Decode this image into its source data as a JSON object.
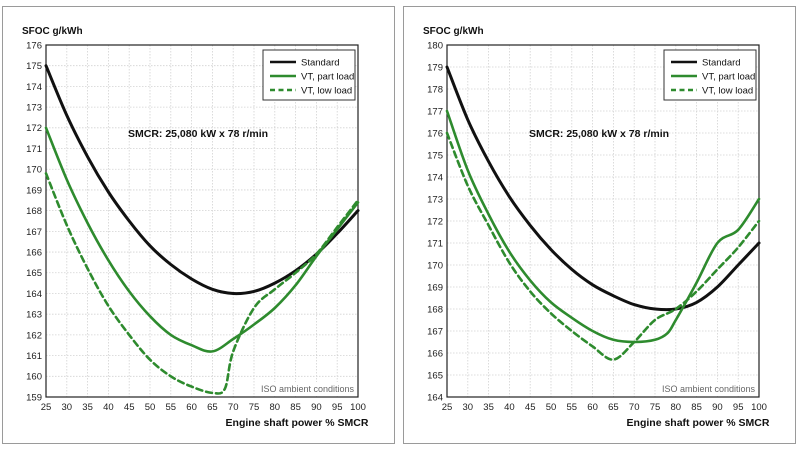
{
  "chart_data": [
    {
      "type": "line",
      "ylabel": "SFOC g/kWh",
      "xlabel": "Engine shaft power % SMCR",
      "annotation": "SMCR: 25,080 kW x 78 r/min",
      "note": "ISO ambient conditions",
      "xlim": [
        25,
        100
      ],
      "ylim": [
        159,
        176
      ],
      "xticks": [
        25,
        30,
        35,
        40,
        45,
        50,
        55,
        60,
        65,
        70,
        75,
        80,
        85,
        90,
        95,
        100
      ],
      "yticks": [
        159,
        160,
        161,
        162,
        163,
        164,
        165,
        166,
        167,
        168,
        169,
        170,
        171,
        172,
        173,
        174,
        175,
        176
      ],
      "grid": true,
      "legend": "top-right",
      "series": [
        {
          "name": "Standard",
          "color": "#111111",
          "style": "solid",
          "x": [
            25,
            30,
            35,
            40,
            45,
            50,
            55,
            60,
            65,
            70,
            75,
            80,
            85,
            90,
            95,
            100
          ],
          "y": [
            175.0,
            172.6,
            170.6,
            168.9,
            167.5,
            166.3,
            165.4,
            164.7,
            164.2,
            164.0,
            164.1,
            164.5,
            165.1,
            165.9,
            166.9,
            168.0
          ]
        },
        {
          "name": "VT, part load",
          "color": "#2e8b2e",
          "style": "solid",
          "x": [
            25,
            30,
            35,
            40,
            45,
            50,
            55,
            60,
            65,
            70,
            75,
            80,
            85,
            90,
            95,
            100
          ],
          "y": [
            172.0,
            169.5,
            167.4,
            165.6,
            164.1,
            162.9,
            162.0,
            161.5,
            161.2,
            161.8,
            162.5,
            163.3,
            164.4,
            165.8,
            167.1,
            168.4
          ]
        },
        {
          "name": "VT, low load",
          "color": "#2e8b2e",
          "style": "dashed",
          "x": [
            25,
            30,
            35,
            40,
            45,
            50,
            55,
            60,
            65,
            68,
            70,
            75,
            80,
            85,
            90,
            95,
            100
          ],
          "y": [
            169.8,
            167.3,
            165.2,
            163.4,
            162.0,
            160.8,
            160.0,
            159.5,
            159.2,
            159.4,
            161.2,
            163.3,
            164.2,
            165.0,
            165.9,
            167.2,
            168.5
          ]
        }
      ]
    },
    {
      "type": "line",
      "ylabel": "SFOC g/kWh",
      "xlabel": "Engine shaft power % SMCR",
      "annotation": "SMCR: 25,080 kW x 78 r/min",
      "note": "ISO ambient conditions",
      "xlim": [
        25,
        100
      ],
      "ylim": [
        164,
        180
      ],
      "xticks": [
        25,
        30,
        35,
        40,
        45,
        50,
        55,
        60,
        65,
        70,
        75,
        80,
        85,
        90,
        95,
        100
      ],
      "yticks": [
        164,
        165,
        166,
        167,
        168,
        169,
        170,
        171,
        172,
        173,
        174,
        175,
        176,
        177,
        178,
        179,
        180
      ],
      "grid": true,
      "legend": "top-right",
      "series": [
        {
          "name": "Standard",
          "color": "#111111",
          "style": "solid",
          "x": [
            25,
            30,
            35,
            40,
            45,
            50,
            55,
            60,
            65,
            70,
            75,
            80,
            85,
            90,
            95,
            100
          ],
          "y": [
            179.0,
            176.6,
            174.7,
            173.1,
            171.8,
            170.7,
            169.8,
            169.1,
            168.6,
            168.2,
            168.0,
            168.0,
            168.3,
            169.0,
            170.0,
            171.0
          ]
        },
        {
          "name": "VT, part load",
          "color": "#2e8b2e",
          "style": "solid",
          "x": [
            25,
            30,
            35,
            40,
            45,
            50,
            55,
            60,
            65,
            70,
            75,
            78,
            80,
            85,
            90,
            95,
            100
          ],
          "y": [
            177.0,
            174.3,
            172.3,
            170.6,
            169.3,
            168.3,
            167.6,
            167.0,
            166.6,
            166.5,
            166.6,
            166.9,
            167.5,
            169.2,
            171.0,
            171.6,
            173.0
          ]
        },
        {
          "name": "VT, low load",
          "color": "#2e8b2e",
          "style": "dashed",
          "x": [
            25,
            30,
            35,
            40,
            45,
            50,
            55,
            60,
            65,
            70,
            75,
            80,
            85,
            90,
            95,
            100
          ],
          "y": [
            176.0,
            173.6,
            171.8,
            170.1,
            168.8,
            167.8,
            167.0,
            166.3,
            165.7,
            166.5,
            167.5,
            168.0,
            168.8,
            169.8,
            170.8,
            172.0
          ]
        }
      ]
    }
  ]
}
